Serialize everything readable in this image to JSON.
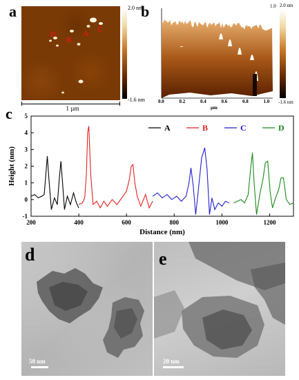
{
  "panels": {
    "a": {
      "label": "a",
      "scale_label": "1 µm",
      "colorbar": {
        "max": "2.0 nm",
        "min": "-1.6 nm"
      },
      "markers": [
        "A",
        "B",
        "C",
        "D"
      ]
    },
    "b": {
      "label": "b",
      "colorbar": {
        "max": "2.0 nm",
        "min": "-1.6 nm",
        "top_tick": "1.0"
      },
      "x_ticks": [
        "0.0",
        "0.2",
        "0.4",
        "0.6",
        "0.8",
        "1.0"
      ],
      "x_unit": "µm"
    },
    "c": {
      "label": "c"
    },
    "d": {
      "label": "d",
      "scale_label": "50 nm"
    },
    "e": {
      "label": "e",
      "scale_label": "20 nm"
    }
  },
  "chart_data": {
    "type": "line",
    "xlabel": "Distance (nm)",
    "ylabel": "Height (nm)",
    "xlim": [
      200,
      1300
    ],
    "ylim": [
      -1,
      5
    ],
    "x_ticks": [
      200,
      400,
      600,
      800,
      1000,
      1200
    ],
    "y_ticks": [
      -1,
      0,
      1,
      2,
      3,
      4,
      5
    ],
    "legend_position": "top-right",
    "grid": false,
    "series": [
      {
        "name": "A",
        "color": "#000000",
        "x": [
          200,
          215,
          230,
          245,
          255,
          262,
          268,
          275,
          285,
          298,
          310,
          318,
          325,
          332,
          340,
          352,
          365,
          378,
          390,
          400
        ],
        "y": [
          0.2,
          0.3,
          0.1,
          0.2,
          0.3,
          1.5,
          2.6,
          1.2,
          -0.6,
          0.1,
          -0.3,
          1.2,
          2.3,
          1.0,
          -0.6,
          0.2,
          -0.3,
          0.4,
          -0.2,
          -0.5
        ]
      },
      {
        "name": "B",
        "color": "#e02020",
        "x": [
          400,
          415,
          425,
          432,
          437,
          442,
          450,
          460,
          475,
          490,
          505,
          520,
          540,
          560,
          580,
          600,
          612,
          620,
          627,
          635,
          645,
          660,
          680,
          695,
          710
        ],
        "y": [
          -0.3,
          -0.2,
          0.1,
          1.5,
          4.0,
          4.4,
          1.5,
          -0.3,
          -0.1,
          -0.5,
          -0.1,
          -0.4,
          0.0,
          -0.3,
          0.1,
          0.5,
          1.2,
          2.0,
          2.1,
          1.0,
          0.2,
          -0.4,
          0.3,
          -0.5,
          -0.1
        ]
      },
      {
        "name": "C",
        "color": "#2020d0",
        "x": [
          710,
          730,
          750,
          770,
          790,
          810,
          830,
          850,
          862,
          870,
          880,
          890,
          900,
          915,
          928,
          938,
          948,
          958,
          970,
          985,
          1000,
          1015,
          1030
        ],
        "y": [
          0.2,
          0.4,
          0.1,
          0.3,
          0.0,
          0.2,
          -0.1,
          0.2,
          1.0,
          1.9,
          0.8,
          -0.9,
          0.4,
          2.5,
          3.1,
          1.8,
          -0.9,
          0.1,
          -0.6,
          -0.2,
          -0.4,
          -0.1,
          -0.2
        ]
      },
      {
        "name": "D",
        "color": "#1a8a1a",
        "x": [
          1050,
          1065,
          1080,
          1095,
          1110,
          1120,
          1128,
          1135,
          1145,
          1160,
          1172,
          1182,
          1192,
          1202,
          1212,
          1225,
          1238,
          1248,
          1258,
          1270,
          1285,
          1300
        ],
        "y": [
          -0.2,
          -0.1,
          0.0,
          -0.2,
          0.3,
          1.8,
          2.8,
          1.0,
          -0.9,
          0.4,
          1.2,
          2.2,
          2.3,
          0.5,
          -0.5,
          0.1,
          0.6,
          1.3,
          1.3,
          0.0,
          -0.3,
          -0.2
        ]
      }
    ]
  }
}
